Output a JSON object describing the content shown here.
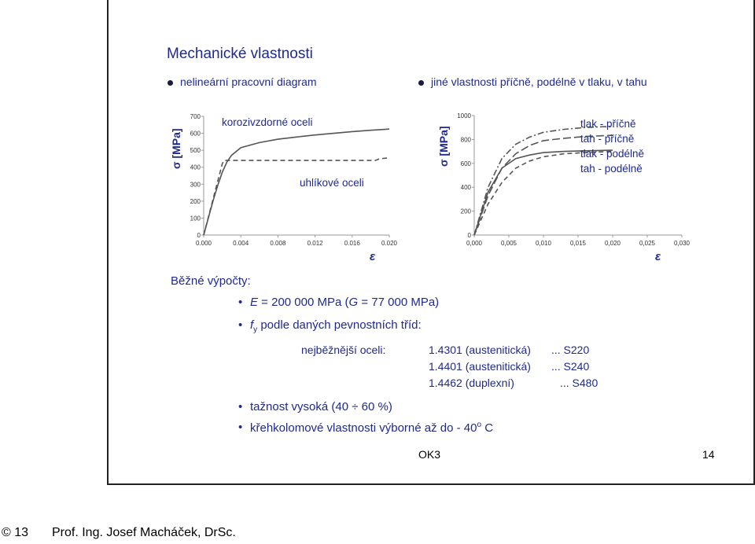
{
  "slide": {
    "title": "Mechanické vlastnosti",
    "bullets_top": [
      "nelineární pracovní diagram",
      "jiné vlastnosti příčně, podélně v tlaku, v tahu"
    ]
  },
  "chart_data": [
    {
      "type": "line",
      "ylabel": "σ [MPa]",
      "xlabel": "ε",
      "x_ticks": [
        "0.000",
        "0.004",
        "0.008",
        "0.012",
        "0.016",
        "0.020"
      ],
      "y_ticks": [
        "0",
        "100",
        "200",
        "300",
        "400",
        "500",
        "600",
        "700"
      ],
      "xlim": [
        0,
        0.02
      ],
      "ylim": [
        0,
        700
      ],
      "annotations": [
        "korozivzdorné oceli",
        "uhlíkové oceli"
      ],
      "series": [
        {
          "style": "solid",
          "x": [
            0,
            0.0005,
            0.001,
            0.0015,
            0.002,
            0.0025,
            0.003,
            0.004,
            0.006,
            0.008,
            0.01,
            0.012,
            0.014,
            0.016,
            0.018,
            0.02
          ],
          "y": [
            0,
            100,
            200,
            290,
            370,
            430,
            470,
            515,
            545,
            565,
            578,
            590,
            600,
            610,
            618,
            625
          ]
        },
        {
          "style": "dashed",
          "x": [
            0,
            0.0005,
            0.001,
            0.0015,
            0.002,
            0.0022,
            0.003,
            0.006,
            0.01,
            0.014,
            0.0185,
            0.019,
            0.02
          ],
          "y": [
            0,
            105,
            210,
            315,
            420,
            440,
            440,
            440,
            440,
            440,
            440,
            450,
            455
          ]
        }
      ]
    },
    {
      "type": "line",
      "ylabel": "σ [MPa]",
      "xlabel": "ε",
      "x_ticks": [
        "0,000",
        "0,005",
        "0,010",
        "0,015",
        "0,020",
        "0,025",
        "0,030"
      ],
      "y_ticks": [
        "0",
        "200",
        "400",
        "600",
        "800",
        "1000"
      ],
      "xlim": [
        0,
        0.03
      ],
      "ylim": [
        0,
        1000
      ],
      "legend": [
        "tlak - příčně",
        "tah - příčně",
        "tlak - podélně",
        "tah - podélně"
      ],
      "series": [
        {
          "name": "tlak - příčně",
          "style": "dashdot",
          "x": [
            0,
            0.002,
            0.004,
            0.006,
            0.008,
            0.01,
            0.013,
            0.016,
            0.02
          ],
          "y": [
            0,
            400,
            640,
            760,
            820,
            860,
            885,
            900,
            910
          ]
        },
        {
          "name": "tah - příčně",
          "style": "solid",
          "x": [
            0,
            0.002,
            0.004,
            0.006,
            0.008,
            0.01,
            0.013,
            0.016,
            0.02
          ],
          "y": [
            0,
            360,
            560,
            640,
            670,
            690,
            700,
            705,
            710
          ]
        },
        {
          "name": "tlak - podélně",
          "style": "dash-long",
          "x": [
            0,
            0.002,
            0.004,
            0.006,
            0.008,
            0.01,
            0.013,
            0.016,
            0.02
          ],
          "y": [
            0,
            330,
            560,
            680,
            750,
            790,
            810,
            825,
            835
          ]
        },
        {
          "name": "tah - podélně",
          "style": "dashed",
          "x": [
            0,
            0.002,
            0.004,
            0.006,
            0.008,
            0.01,
            0.013,
            0.016,
            0.02
          ],
          "y": [
            0,
            260,
            440,
            560,
            620,
            655,
            680,
            690,
            700
          ]
        }
      ]
    }
  ],
  "calc": {
    "heading": "Běžné výpočty:",
    "line_e_pre": "E",
    "line_e_mid": " = 200 000 MPa (",
    "line_g": "G",
    "line_e_post": " = 77 000 MPa)",
    "fy_f": "f",
    "fy_sub": "y",
    "fy_rest": " podle daných pevnostních tříd:",
    "steels_label": "nejběžnější oceli:",
    "steels": [
      {
        "grade": "1.4301 (austenitická)",
        "class": "... S220"
      },
      {
        "grade": "1.4401 (austenitická)",
        "class": "... S240"
      },
      {
        "grade": "1.4462 (duplexní)",
        "class": "... S480"
      }
    ],
    "ductility": "tažnost vysoká (40 ÷ 60 %)",
    "brittle_pre": "křehkolomové vlastnosti výborné až do - 40",
    "brittle_sup": "o",
    "brittle_post": " C"
  },
  "slide_footer": {
    "code": "OK3",
    "page": "14"
  },
  "page_footer": {
    "copyright": "© 13",
    "author": "Prof. Ing. Josef Macháček, DrSc."
  }
}
